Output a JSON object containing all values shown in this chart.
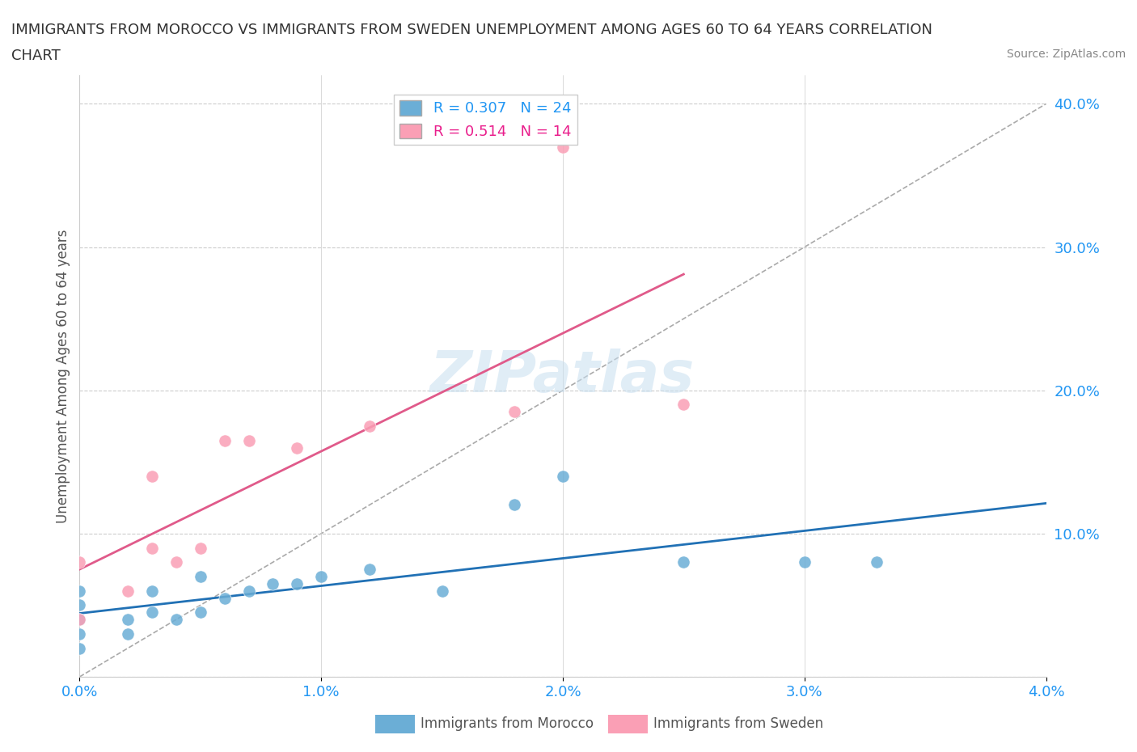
{
  "title_line1": "IMMIGRANTS FROM MOROCCO VS IMMIGRANTS FROM SWEDEN UNEMPLOYMENT AMONG AGES 60 TO 64 YEARS CORRELATION",
  "title_line2": "CHART",
  "source_text": "Source: ZipAtlas.com",
  "ylabel": "Unemployment Among Ages 60 to 64 years",
  "xlim": [
    0.0,
    0.04
  ],
  "ylim": [
    0.0,
    0.42
  ],
  "xticks": [
    0.0,
    0.01,
    0.02,
    0.03,
    0.04
  ],
  "yticks": [
    0.0,
    0.1,
    0.2,
    0.3,
    0.4
  ],
  "legend_r1": "R = 0.307   N = 24",
  "legend_r2": "R = 0.514   N = 14",
  "blue_color": "#6baed6",
  "pink_color": "#fa9fb5",
  "trend_blue": "#2171b5",
  "trend_pink": "#e05a8a",
  "watermark": "ZIPatlas",
  "morocco_x": [
    0.0,
    0.0,
    0.0,
    0.0,
    0.0,
    0.002,
    0.002,
    0.003,
    0.003,
    0.004,
    0.005,
    0.005,
    0.006,
    0.007,
    0.008,
    0.009,
    0.01,
    0.012,
    0.015,
    0.018,
    0.02,
    0.025,
    0.03,
    0.033
  ],
  "morocco_y": [
    0.03,
    0.04,
    0.05,
    0.06,
    0.02,
    0.03,
    0.04,
    0.06,
    0.045,
    0.04,
    0.045,
    0.07,
    0.055,
    0.06,
    0.065,
    0.065,
    0.07,
    0.075,
    0.06,
    0.12,
    0.14,
    0.08,
    0.08,
    0.08
  ],
  "sweden_x": [
    0.0,
    0.0,
    0.002,
    0.003,
    0.003,
    0.004,
    0.005,
    0.006,
    0.007,
    0.009,
    0.012,
    0.018,
    0.02,
    0.025
  ],
  "sweden_y": [
    0.04,
    0.08,
    0.06,
    0.09,
    0.14,
    0.08,
    0.09,
    0.165,
    0.165,
    0.16,
    0.175,
    0.185,
    0.37,
    0.19
  ]
}
